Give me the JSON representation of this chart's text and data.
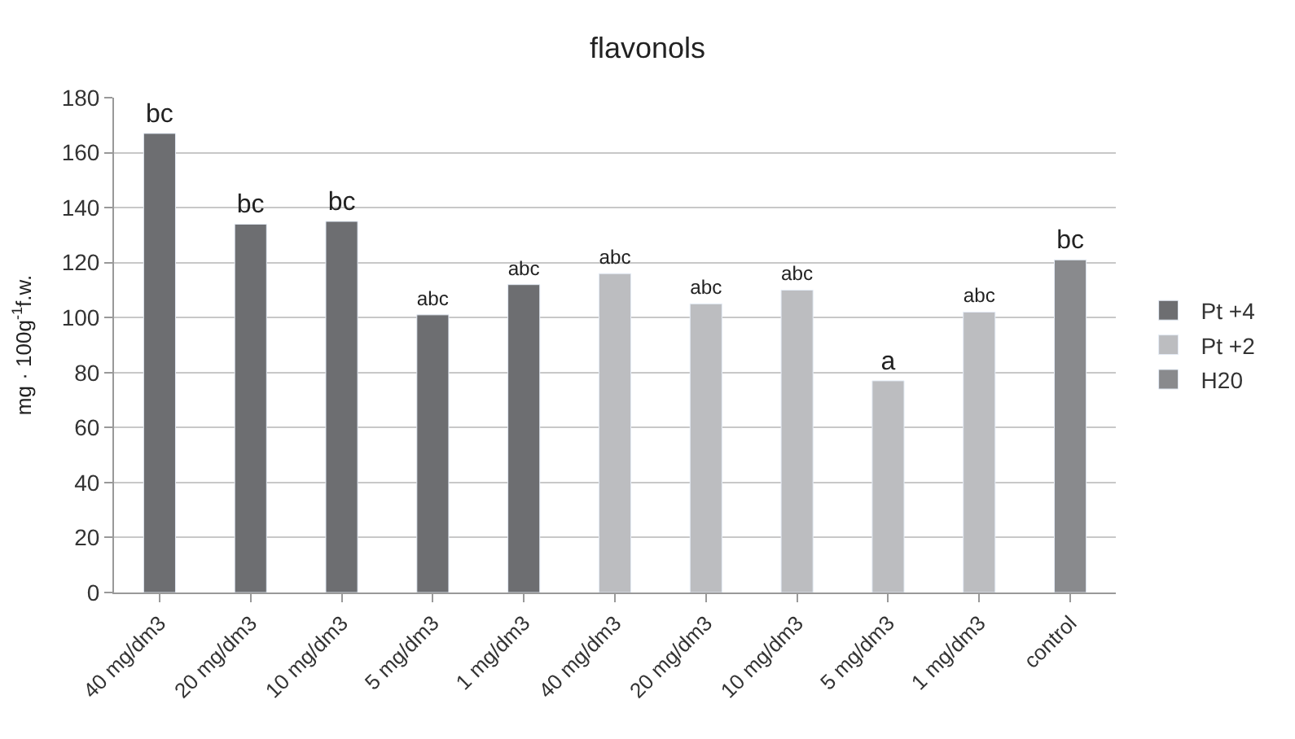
{
  "chart_data": {
    "type": "bar",
    "title": "flavonols",
    "ylabel": "mg · 100g$^{-1}$f.w.",
    "categories": [
      "40 mg/dm3",
      "20 mg/dm3",
      "10 mg/dm3",
      "5 mg/dm3",
      "1 mg/dm3",
      "40 mg/dm3",
      "20 mg/dm3",
      "10 mg/dm3",
      "5 mg/dm3",
      "1 mg/dm3",
      "control"
    ],
    "series": [
      {
        "name": "Pt +4",
        "color": "#6d6e71",
        "values": [
          167,
          134,
          135,
          101,
          112,
          null,
          null,
          null,
          null,
          null,
          null
        ],
        "value_labels": [
          "bc",
          "bc",
          "bc",
          "abc",
          "abc",
          null,
          null,
          null,
          null,
          null,
          null
        ]
      },
      {
        "name": "Pt +2",
        "color": "#bcbdc0",
        "values": [
          null,
          null,
          null,
          null,
          null,
          116,
          105,
          110,
          77,
          102,
          null
        ],
        "value_labels": [
          null,
          null,
          null,
          null,
          null,
          "abc",
          "abc",
          "abc",
          "a",
          "abc",
          null
        ]
      },
      {
        "name": "H20",
        "color": "#898a8d",
        "values": [
          null,
          null,
          null,
          null,
          null,
          null,
          null,
          null,
          null,
          null,
          121
        ],
        "value_labels": [
          null,
          null,
          null,
          null,
          null,
          null,
          null,
          null,
          null,
          null,
          "bc"
        ]
      }
    ],
    "ylim": [
      0,
      180
    ],
    "yticks": [
      0,
      20,
      40,
      60,
      80,
      100,
      120,
      140,
      160,
      180
    ],
    "grid": "y",
    "legend": "right"
  }
}
